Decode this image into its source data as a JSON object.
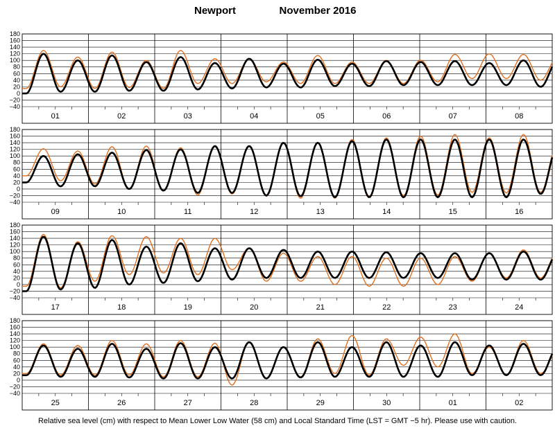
{
  "header": {
    "location": "Newport",
    "month_year": "November   2016"
  },
  "footer": {
    "caption": "Relative sea level (cm) with respect to Mean Lower Low Water (58 cm) and Local Standard Time (LST = GMT −5 hr). Please use with caution."
  },
  "colors": {
    "predicted": "#000000",
    "observed": "#e06f1f",
    "grid": "#000000",
    "background": "#ffffff"
  },
  "chart_data": {
    "type": "line",
    "ylim": [
      -40,
      180
    ],
    "yticks": [
      "180",
      "160",
      "140",
      "120",
      "100",
      "80",
      "60",
      "40",
      "20",
      "0",
      "−20",
      "−40"
    ],
    "grid": true,
    "tide_period_hours": 12.42,
    "series": [
      {
        "values": "predicted tide (black)"
      },
      {
        "values": "observed water level (orange)"
      }
    ],
    "panels": [
      {
        "days": [
          "01",
          "02",
          "03",
          "04",
          "05",
          "06",
          "07",
          "08"
        ],
        "predicted_daily": [
          [
            0,
            120,
            5,
            100
          ],
          [
            5,
            115,
            8,
            95
          ],
          [
            8,
            110,
            12,
            92
          ],
          [
            15,
            105,
            18,
            90
          ],
          [
            18,
            102,
            22,
            90
          ],
          [
            22,
            98,
            25,
            95
          ],
          [
            25,
            98,
            25,
            92
          ],
          [
            25,
            100,
            20,
            100
          ]
        ],
        "observed_daily": [
          [
            15,
            130,
            20,
            110
          ],
          [
            15,
            125,
            18,
            100
          ],
          [
            15,
            130,
            30,
            105
          ],
          [
            30,
            105,
            35,
            95
          ],
          [
            30,
            115,
            30,
            95
          ],
          [
            30,
            100,
            30,
            100
          ],
          [
            35,
            118,
            45,
            120
          ],
          [
            45,
            118,
            40,
            110
          ]
        ]
      },
      {
        "days": [
          "09",
          "10",
          "11",
          "12",
          "13",
          "14",
          "15",
          "16"
        ],
        "predicted_daily": [
          [
            20,
            100,
            8,
            105
          ],
          [
            8,
            110,
            0,
            118
          ],
          [
            -5,
            120,
            -12,
            130
          ],
          [
            -12,
            130,
            -20,
            140
          ],
          [
            -22,
            140,
            -25,
            145
          ],
          [
            -25,
            150,
            -25,
            150
          ],
          [
            -25,
            150,
            -25,
            150
          ],
          [
            -25,
            150,
            -15,
            130
          ]
        ],
        "observed_daily": [
          [
            40,
            122,
            25,
            115
          ],
          [
            15,
            128,
            0,
            130
          ],
          [
            -5,
            125,
            -18,
            130
          ],
          [
            -15,
            130,
            -22,
            138
          ],
          [
            -28,
            140,
            -28,
            150
          ],
          [
            -22,
            155,
            -20,
            160
          ],
          [
            -18,
            165,
            -10,
            155
          ],
          [
            -12,
            165,
            -10,
            140
          ]
        ]
      },
      {
        "days": [
          "17",
          "18",
          "19",
          "20",
          "21",
          "22",
          "23",
          "24"
        ],
        "predicted_daily": [
          [
            -20,
            145,
            -15,
            125
          ],
          [
            -10,
            135,
            0,
            115
          ],
          [
            5,
            125,
            10,
            110
          ],
          [
            15,
            110,
            20,
            105
          ],
          [
            20,
            100,
            20,
            100
          ],
          [
            20,
            98,
            20,
            95
          ],
          [
            20,
            95,
            15,
            95
          ],
          [
            15,
            100,
            15,
            95
          ]
        ],
        "observed_daily": [
          [
            -5,
            152,
            -10,
            130
          ],
          [
            10,
            148,
            30,
            145
          ],
          [
            35,
            140,
            30,
            140
          ],
          [
            45,
            110,
            10,
            95
          ],
          [
            10,
            85,
            0,
            85
          ],
          [
            -5,
            80,
            -5,
            80
          ],
          [
            0,
            85,
            10,
            95
          ],
          [
            20,
            105,
            20,
            100
          ]
        ]
      },
      {
        "days": [
          "25",
          "26",
          "27",
          "28",
          "29",
          "30",
          "01",
          "02"
        ],
        "predicted_daily": [
          [
            15,
            105,
            10,
            95
          ],
          [
            10,
            110,
            8,
            95
          ],
          [
            5,
            112,
            5,
            100
          ],
          [
            5,
            115,
            5,
            100
          ],
          [
            8,
            115,
            10,
            100
          ],
          [
            10,
            115,
            10,
            105
          ],
          [
            10,
            115,
            15,
            105
          ],
          [
            15,
            110,
            15,
            100
          ]
        ],
        "observed_daily": [
          [
            20,
            110,
            15,
            105
          ],
          [
            15,
            120,
            15,
            110
          ],
          [
            10,
            120,
            10,
            112
          ],
          [
            -15,
            115,
            5,
            100
          ],
          [
            10,
            125,
            20,
            135
          ],
          [
            15,
            125,
            45,
            130
          ],
          [
            40,
            140,
            20,
            100
          ],
          [
            15,
            120,
            20,
            90
          ]
        ]
      }
    ]
  }
}
